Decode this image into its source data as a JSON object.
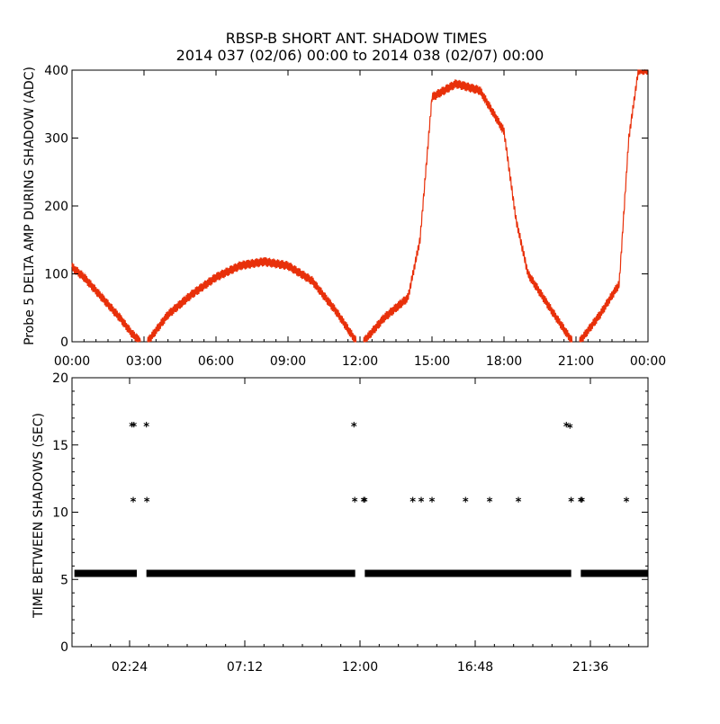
{
  "title_line1": "RBSP-B SHORT ANT. SHADOW TIMES",
  "title_line2": "2014 037 (02/06) 00:00 to 2014 038 (02/07) 00:00",
  "chart_data": [
    {
      "type": "scatter",
      "name": "delta-amp",
      "ylabel": "Probe 5 DELTA AMP DURING SHADOW (ADC)",
      "xlabel": "",
      "x_unit": "hours",
      "xlim": [
        0,
        24
      ],
      "ylim": [
        0,
        400
      ],
      "xticks": [
        0,
        3,
        6,
        9,
        12,
        15,
        18,
        21,
        24
      ],
      "xtick_labels": [
        "00:00",
        "03:00",
        "06:00",
        "09:00",
        "12:00",
        "15:00",
        "18:00",
        "21:00",
        "00:00"
      ],
      "yticks": [
        0,
        100,
        200,
        300,
        400
      ],
      "ytick_labels": [
        "0",
        "100",
        "200",
        "300",
        "400"
      ],
      "color": "#e8300a",
      "series": [
        {
          "name": "arc-1",
          "x": [
            0.0,
            0.5,
            1.0,
            1.5,
            2.0,
            2.5,
            2.85
          ],
          "values": [
            110,
            95,
            75,
            55,
            35,
            12,
            0
          ]
        },
        {
          "name": "arc-2",
          "x": [
            3.15,
            4.0,
            5.0,
            6.0,
            7.0,
            8.0,
            9.0,
            10.0,
            11.0,
            11.85
          ],
          "values": [
            0,
            40,
            70,
            95,
            112,
            118,
            112,
            90,
            45,
            0
          ]
        },
        {
          "name": "arc-3",
          "x": [
            12.15,
            13.0,
            14.0,
            14.5,
            15.0,
            16.0,
            17.0,
            18.0,
            18.5,
            19.0,
            20.0,
            20.85
          ],
          "values": [
            0,
            35,
            65,
            150,
            360,
            380,
            370,
            310,
            180,
            100,
            45,
            0
          ]
        },
        {
          "name": "arc-4",
          "x": [
            21.15,
            22.0,
            22.8,
            23.2,
            23.6,
            24.0
          ],
          "values": [
            0,
            40,
            85,
            300,
            400,
            400
          ]
        }
      ]
    },
    {
      "type": "scatter",
      "name": "time-between",
      "ylabel": "TIME BETWEEN SHADOWS (SEC)",
      "xlabel": "",
      "x_unit": "hours",
      "xlim": [
        0,
        24
      ],
      "ylim": [
        0,
        20
      ],
      "xticks": [
        2.4,
        7.2,
        12.0,
        16.8,
        21.6
      ],
      "xtick_labels": [
        "02:24",
        "07:12",
        "12:00",
        "16:48",
        "21:36"
      ],
      "yticks": [
        0,
        5,
        10,
        15,
        20
      ],
      "ytick_labels": [
        "0",
        "5",
        "10",
        "15",
        "20"
      ],
      "color": "#000000",
      "baseline": {
        "value": 5.45,
        "segments": [
          [
            0.1,
            2.7
          ],
          [
            3.1,
            11.8
          ],
          [
            12.2,
            20.8
          ],
          [
            21.2,
            24.0
          ]
        ]
      },
      "points": {
        "x": [
          2.5,
          2.58,
          3.1,
          11.75,
          2.55,
          3.12,
          11.78,
          12.15,
          12.2,
          14.2,
          14.55,
          15.0,
          16.4,
          17.4,
          18.6,
          20.6,
          20.75,
          20.8,
          21.2,
          21.25,
          23.1
        ],
        "values": [
          16.4,
          16.4,
          16.4,
          16.4,
          10.8,
          10.8,
          10.8,
          10.8,
          10.8,
          10.8,
          10.8,
          10.8,
          10.8,
          10.8,
          10.8,
          16.4,
          16.3,
          10.8,
          10.8,
          10.8,
          10.8
        ]
      }
    }
  ]
}
